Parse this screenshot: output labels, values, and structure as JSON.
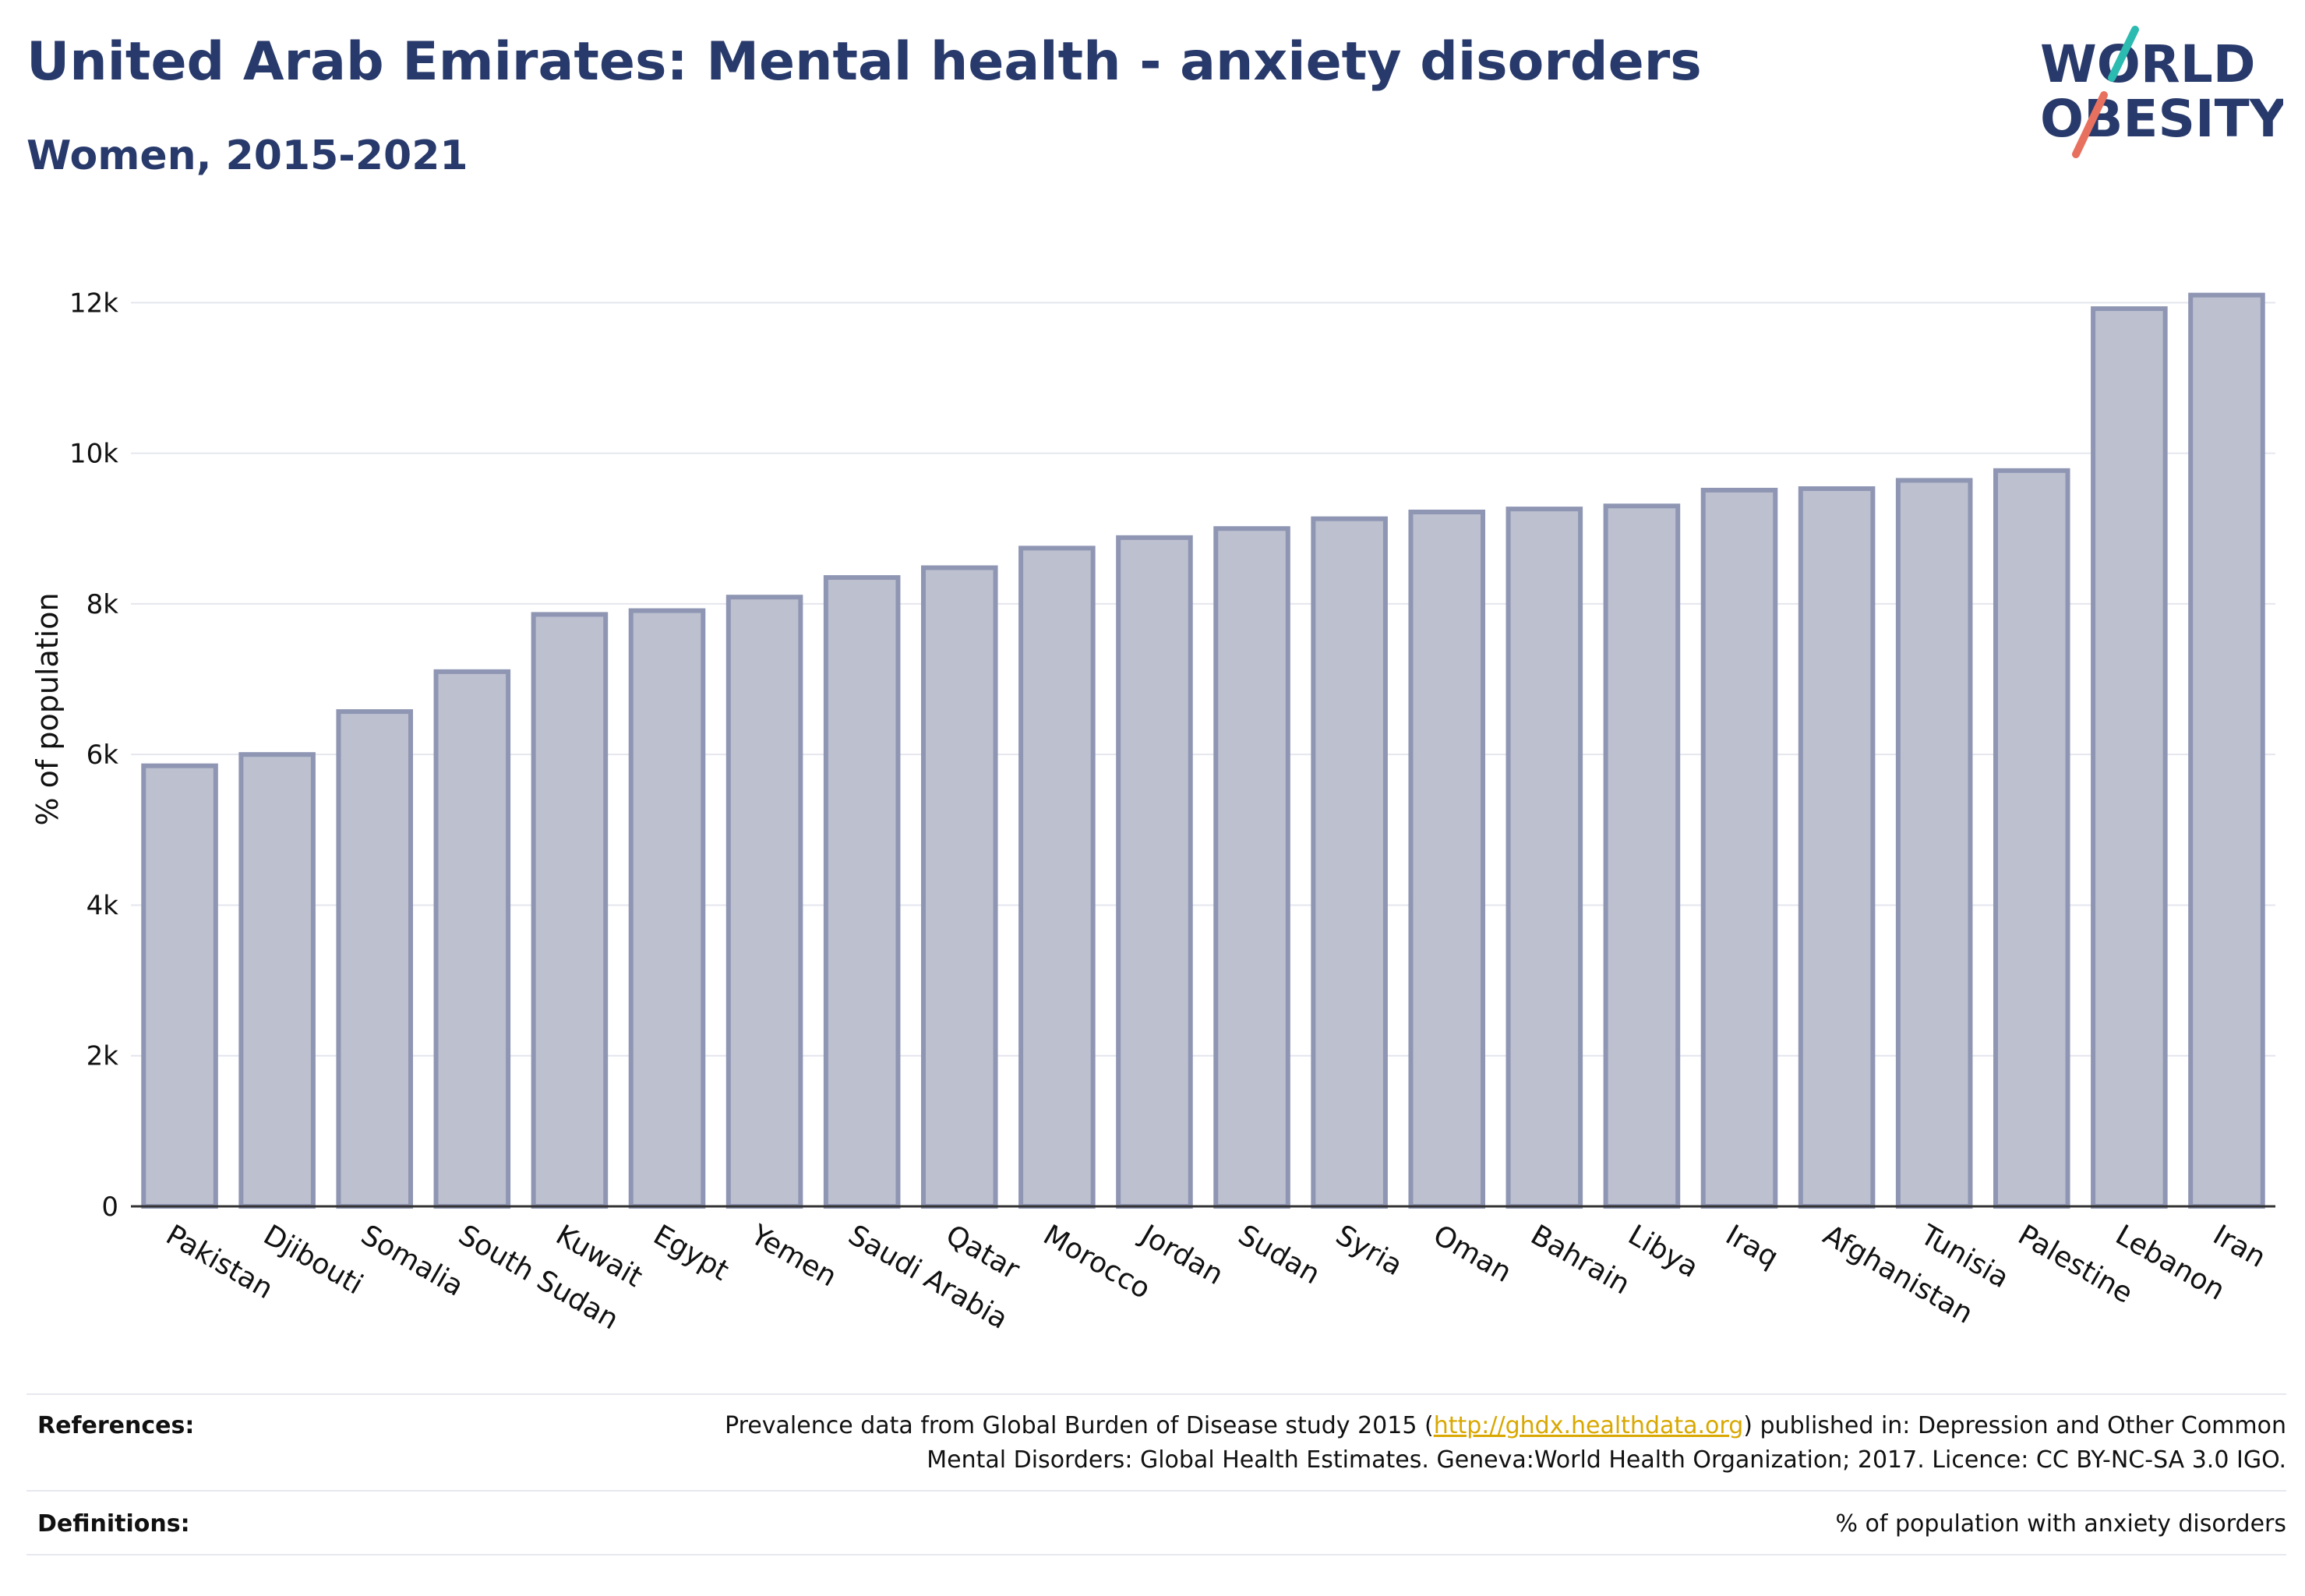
{
  "title": "United Arab Emirates: Mental health - anxiety disorders",
  "subtitle": "Women, 2015-2021",
  "logo": {
    "line1": "WORLD",
    "line2": "OBESITY"
  },
  "chart_data": {
    "type": "bar",
    "categories": [
      "Pakistan",
      "Djibouti",
      "Somalia",
      "South Sudan",
      "Kuwait",
      "Egypt",
      "Yemen",
      "Saudi Arabia",
      "Qatar",
      "Morocco",
      "Jordan",
      "Sudan",
      "Syria",
      "Oman",
      "Bahrain",
      "Libya",
      "Iraq",
      "Afghanistan",
      "Tunisia",
      "Palestine",
      "Lebanon",
      "Iran"
    ],
    "values": [
      5850,
      6000,
      6570,
      7100,
      7860,
      7910,
      8090,
      8350,
      8480,
      8740,
      8880,
      9000,
      9130,
      9220,
      9260,
      9300,
      9510,
      9530,
      9640,
      9770,
      11920,
      12100
    ],
    "ylabel": "% of population",
    "xlabel": "",
    "ylim": [
      0,
      12500
    ],
    "yticks": [
      0,
      2000,
      4000,
      6000,
      8000,
      10000,
      12000
    ],
    "ytick_labels": [
      "0",
      "2k",
      "4k",
      "6k",
      "8k",
      "10k",
      "12k"
    ],
    "grid": true,
    "bar_fill": "#bcc0cf",
    "bar_stroke": "#8f96b3"
  },
  "references": {
    "label": "References:",
    "text_before": "Prevalence data from Global Burden of Disease study 2015 (",
    "link": "http://ghdx.healthdata.org",
    "text_after": ") published in: Depression and Other Common",
    "line2": "Mental Disorders: Global Health Estimates. Geneva:World Health Organization; 2017. Licence: CC BY-NC-SA 3.0 IGO."
  },
  "definitions": {
    "label": "Definitions:",
    "text": "% of population with anxiety disorders"
  },
  "colors": {
    "title": "#283a6b",
    "logo_navy": "#283a6b",
    "logo_teal": "#2bbbb0",
    "logo_coral": "#e8705f",
    "link": "#d9a800"
  }
}
